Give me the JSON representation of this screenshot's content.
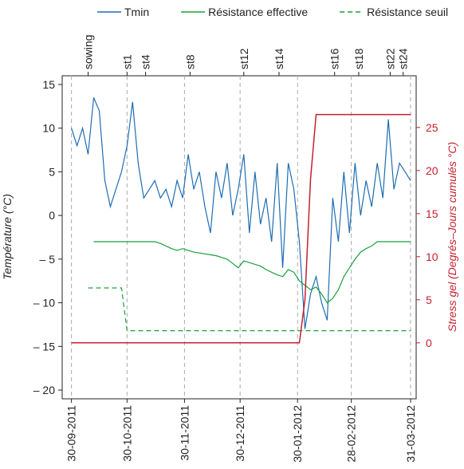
{
  "chart_data": {
    "type": "line",
    "ylabel": "Température (°C)",
    "y2label": "Stress gel (Degrés–Jours cumulés °C)",
    "legend": "top",
    "x": [
      "2011-09-30",
      "2011-10-03",
      "2011-10-06",
      "2011-10-09",
      "2011-10-12",
      "2011-10-15",
      "2011-10-18",
      "2011-10-21",
      "2011-10-24",
      "2011-10-27",
      "2011-10-30",
      "2011-11-02",
      "2011-11-05",
      "2011-11-08",
      "2011-11-11",
      "2011-11-14",
      "2011-11-17",
      "2011-11-20",
      "2011-11-23",
      "2011-11-26",
      "2011-11-29",
      "2011-12-02",
      "2011-12-05",
      "2011-12-08",
      "2011-12-11",
      "2011-12-14",
      "2011-12-17",
      "2011-12-20",
      "2011-12-23",
      "2011-12-26",
      "2011-12-29",
      "2012-01-01",
      "2012-01-04",
      "2012-01-07",
      "2012-01-10",
      "2012-01-13",
      "2012-01-16",
      "2012-01-19",
      "2012-01-22",
      "2012-01-25",
      "2012-01-28",
      "2012-01-31",
      "2012-02-03",
      "2012-02-06",
      "2012-02-09",
      "2012-02-12",
      "2012-02-15",
      "2012-02-18",
      "2012-02-21",
      "2012-02-24",
      "2012-02-27",
      "2012-03-01",
      "2012-03-04",
      "2012-03-07",
      "2012-03-10",
      "2012-03-13",
      "2012-03-16",
      "2012-03-19",
      "2012-03-22",
      "2012-03-25",
      "2012-03-28",
      "2012-03-31"
    ],
    "series": [
      {
        "name": "Tmin",
        "color": "#1f6db3",
        "values": [
          10,
          8,
          10,
          7,
          13.5,
          12,
          4,
          1,
          3,
          5,
          8,
          13,
          6,
          2,
          3,
          4,
          2,
          3,
          1,
          4,
          2,
          7,
          3,
          5,
          1,
          -2,
          5,
          2,
          6,
          0,
          3,
          7,
          -2,
          5,
          -1,
          2,
          -3,
          6,
          -6,
          6,
          3,
          -3,
          -13,
          -9,
          -7,
          -10,
          -12,
          2,
          -3,
          5,
          -2,
          6,
          0,
          4,
          1,
          6,
          2,
          11,
          3,
          6,
          5,
          4
        ]
      },
      {
        "name": "Résistance effective",
        "color": "#1aa03c",
        "values": [
          null,
          null,
          null,
          null,
          -3,
          -3,
          -3,
          -3,
          -3,
          -3,
          -3,
          -3,
          -3,
          -3,
          -3,
          -3,
          -3.2,
          -3.5,
          -3.8,
          -4,
          -3.8,
          -4,
          -4.2,
          -4.3,
          -4.4,
          -4.5,
          -4.6,
          -4.8,
          -5,
          -5.5,
          -6,
          -5.2,
          -5.4,
          -5.6,
          -5.8,
          -6.2,
          -6.5,
          -6.8,
          -7,
          -6.2,
          -6.5,
          -7.5,
          -8,
          -8.5,
          -8.2,
          -9,
          -10,
          -9.5,
          -8.5,
          -7,
          -6,
          -5,
          -4.2,
          -3.8,
          -3.5,
          -3,
          -3,
          -3,
          -3,
          -3,
          -3,
          -3
        ]
      },
      {
        "name": "Résistance seuil",
        "color": "#1aa03c",
        "dashed": true,
        "values": [
          null,
          null,
          null,
          -8.3,
          -8.3,
          -8.3,
          -8.3,
          -8.3,
          -8.3,
          -8.3,
          -13.2,
          -13.2,
          -13.2,
          -13.2,
          -13.2,
          -13.2,
          -13.2,
          -13.2,
          -13.2,
          -13.2,
          -13.2,
          -13.2,
          -13.2,
          -13.2,
          -13.2,
          -13.2,
          -13.2,
          -13.2,
          -13.2,
          -13.2,
          -13.2,
          -13.2,
          -13.2,
          -13.2,
          -13.2,
          -13.2,
          -13.2,
          -13.2,
          -13.2,
          -13.2,
          -13.2,
          -13.2,
          -13.2,
          -13.2,
          -13.2,
          -13.2,
          -13.2,
          -13.2,
          -13.2,
          -13.2,
          -13.2,
          -13.2,
          -13.2,
          -13.2,
          -13.2,
          -13.2,
          -13.2,
          -13.2,
          -13.2,
          -13.2,
          -13.2,
          -13.2
        ]
      },
      {
        "color": "#c42030",
        "axis": "y2",
        "values": [
          0,
          0,
          0,
          0,
          0,
          0,
          0,
          0,
          0,
          0,
          0,
          0,
          0,
          0,
          0,
          0,
          0,
          0,
          0,
          0,
          0,
          0,
          0,
          0,
          0,
          0,
          0,
          0,
          0,
          0,
          0,
          0,
          0,
          0,
          0,
          0,
          0,
          0,
          0,
          0,
          0,
          0,
          5,
          19,
          26.5,
          26.5,
          26.5,
          26.5,
          26.5,
          26.5,
          26.5,
          26.5,
          26.5,
          26.5,
          26.5,
          26.5,
          26.5,
          26.5,
          26.5,
          26.5,
          26.5,
          26.5
        ]
      }
    ],
    "xlim": [
      "2011-09-25",
      "2012-04-03"
    ],
    "xticks": [
      {
        "value": "2011-09-30",
        "label": "30-09-2011"
      },
      {
        "value": "2011-10-30",
        "label": "30-10-2011"
      },
      {
        "value": "2011-11-30",
        "label": "30-11-2011"
      },
      {
        "value": "2011-12-30",
        "label": "30-12-2011"
      },
      {
        "value": "2012-01-30",
        "label": "30-01-2012"
      },
      {
        "value": "2012-02-28",
        "label": "28-02-2012"
      },
      {
        "value": "2012-03-31",
        "label": "31-03-2012"
      }
    ],
    "x2ticks": [
      {
        "value": "2011-10-09",
        "label": "sowing"
      },
      {
        "value": "2011-10-30",
        "label": "st1"
      },
      {
        "value": "2011-11-09",
        "label": "st4"
      },
      {
        "value": "2011-12-03",
        "label": "st8"
      },
      {
        "value": "2012-01-01",
        "label": "st12"
      },
      {
        "value": "2012-01-20",
        "label": "st14"
      },
      {
        "value": "2012-02-19",
        "label": "st16"
      },
      {
        "value": "2012-03-03",
        "label": "st18"
      },
      {
        "value": "2012-03-20",
        "label": "st22"
      },
      {
        "value": "2012-03-27",
        "label": "st24"
      }
    ],
    "ylim": [
      -21,
      16
    ],
    "yticks": [
      {
        "value": -20,
        "label": "– 20"
      },
      {
        "value": -15,
        "label": "– 15"
      },
      {
        "value": -10,
        "label": "– 10"
      },
      {
        "value": -5,
        "label": "– 5"
      },
      0,
      5,
      10,
      15
    ],
    "y2lim": [
      -6.5,
      31
    ],
    "y2ticks": [
      0,
      5,
      10,
      15,
      20,
      25
    ],
    "y2color": "#c42030",
    "grid": "x"
  }
}
